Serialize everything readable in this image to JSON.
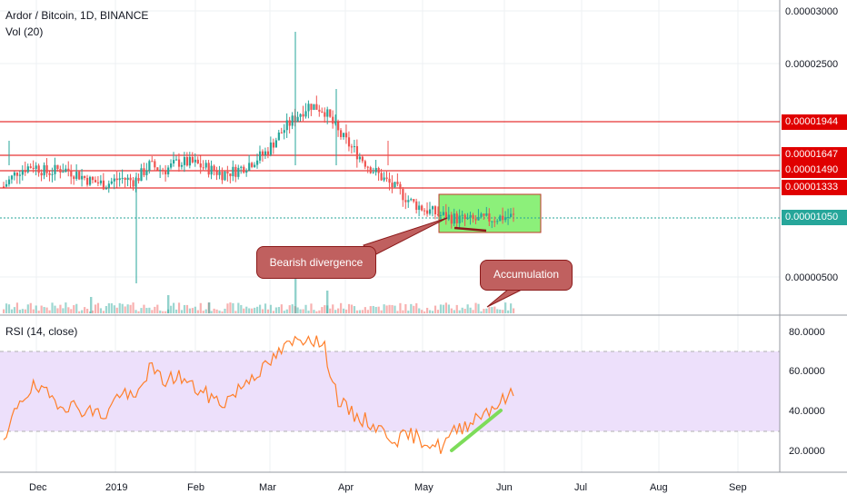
{
  "header": {
    "symbol": "Ardor / Bitcoin, 1D, BINANCE",
    "volume": "Vol (20)",
    "rsi": "RSI (14, close)"
  },
  "colors": {
    "up": "#26a69a",
    "down": "#ef5350",
    "level": "#e00000",
    "rsi_line": "#ff7f2a",
    "rsi_band": "#ede0fb",
    "box": "#8cf07a",
    "callout": "#c0605f"
  },
  "chart_data": [
    {
      "type": "candlestick",
      "title": "Ardor / Bitcoin, 1D, BINANCE",
      "x_ticks": [
        "Dec",
        "2019",
        "Feb",
        "Mar",
        "Apr",
        "May",
        "Jun",
        "Jul",
        "Aug",
        "Sep"
      ],
      "y_ticks": [
        "0.00003000",
        "0.00002500",
        "0.00000500"
      ],
      "ylim": [
        3e-06,
        3.1e-05
      ],
      "horizontal_levels": [
        "0.00001944",
        "0.00001647",
        "0.00001490",
        "0.00001333"
      ],
      "last_price": "0.00001050",
      "close_series": [
        1.35e-05,
        1.5e-05,
        1.55e-05,
        1.48e-05,
        1.52e-05,
        1.47e-05,
        1.4e-05,
        1.37e-05,
        1.43e-05,
        1.4e-05,
        1.55e-05,
        1.5e-05,
        1.58e-05,
        1.57e-05,
        1.52e-05,
        1.47e-05,
        1.5e-05,
        1.58e-05,
        1.67e-05,
        1.85e-05,
        2e-05,
        2.12e-05,
        2.07e-05,
        1.85e-05,
        1.7e-05,
        1.55e-05,
        1.43e-05,
        1.32e-05,
        1.2e-05,
        1.13e-05,
        1.08e-05,
        1.05e-05,
        1.03e-05,
        1.04e-05,
        1.06e-05,
        1.07e-05
      ],
      "annotations": [
        "Bearish divergence",
        "Accumulation"
      ]
    },
    {
      "type": "line",
      "title": "RSI (14, close)",
      "y_ticks": [
        "80.0000",
        "60.0000",
        "40.0000",
        "20.0000"
      ],
      "ylim": [
        10,
        85
      ],
      "band": [
        30,
        70
      ],
      "values": [
        22,
        45,
        52,
        48,
        44,
        42,
        40,
        38,
        50,
        45,
        62,
        55,
        58,
        52,
        48,
        44,
        50,
        58,
        62,
        70,
        75,
        78,
        72,
        45,
        38,
        35,
        30,
        26,
        28,
        25,
        22,
        30,
        35,
        40,
        44,
        49
      ]
    }
  ]
}
